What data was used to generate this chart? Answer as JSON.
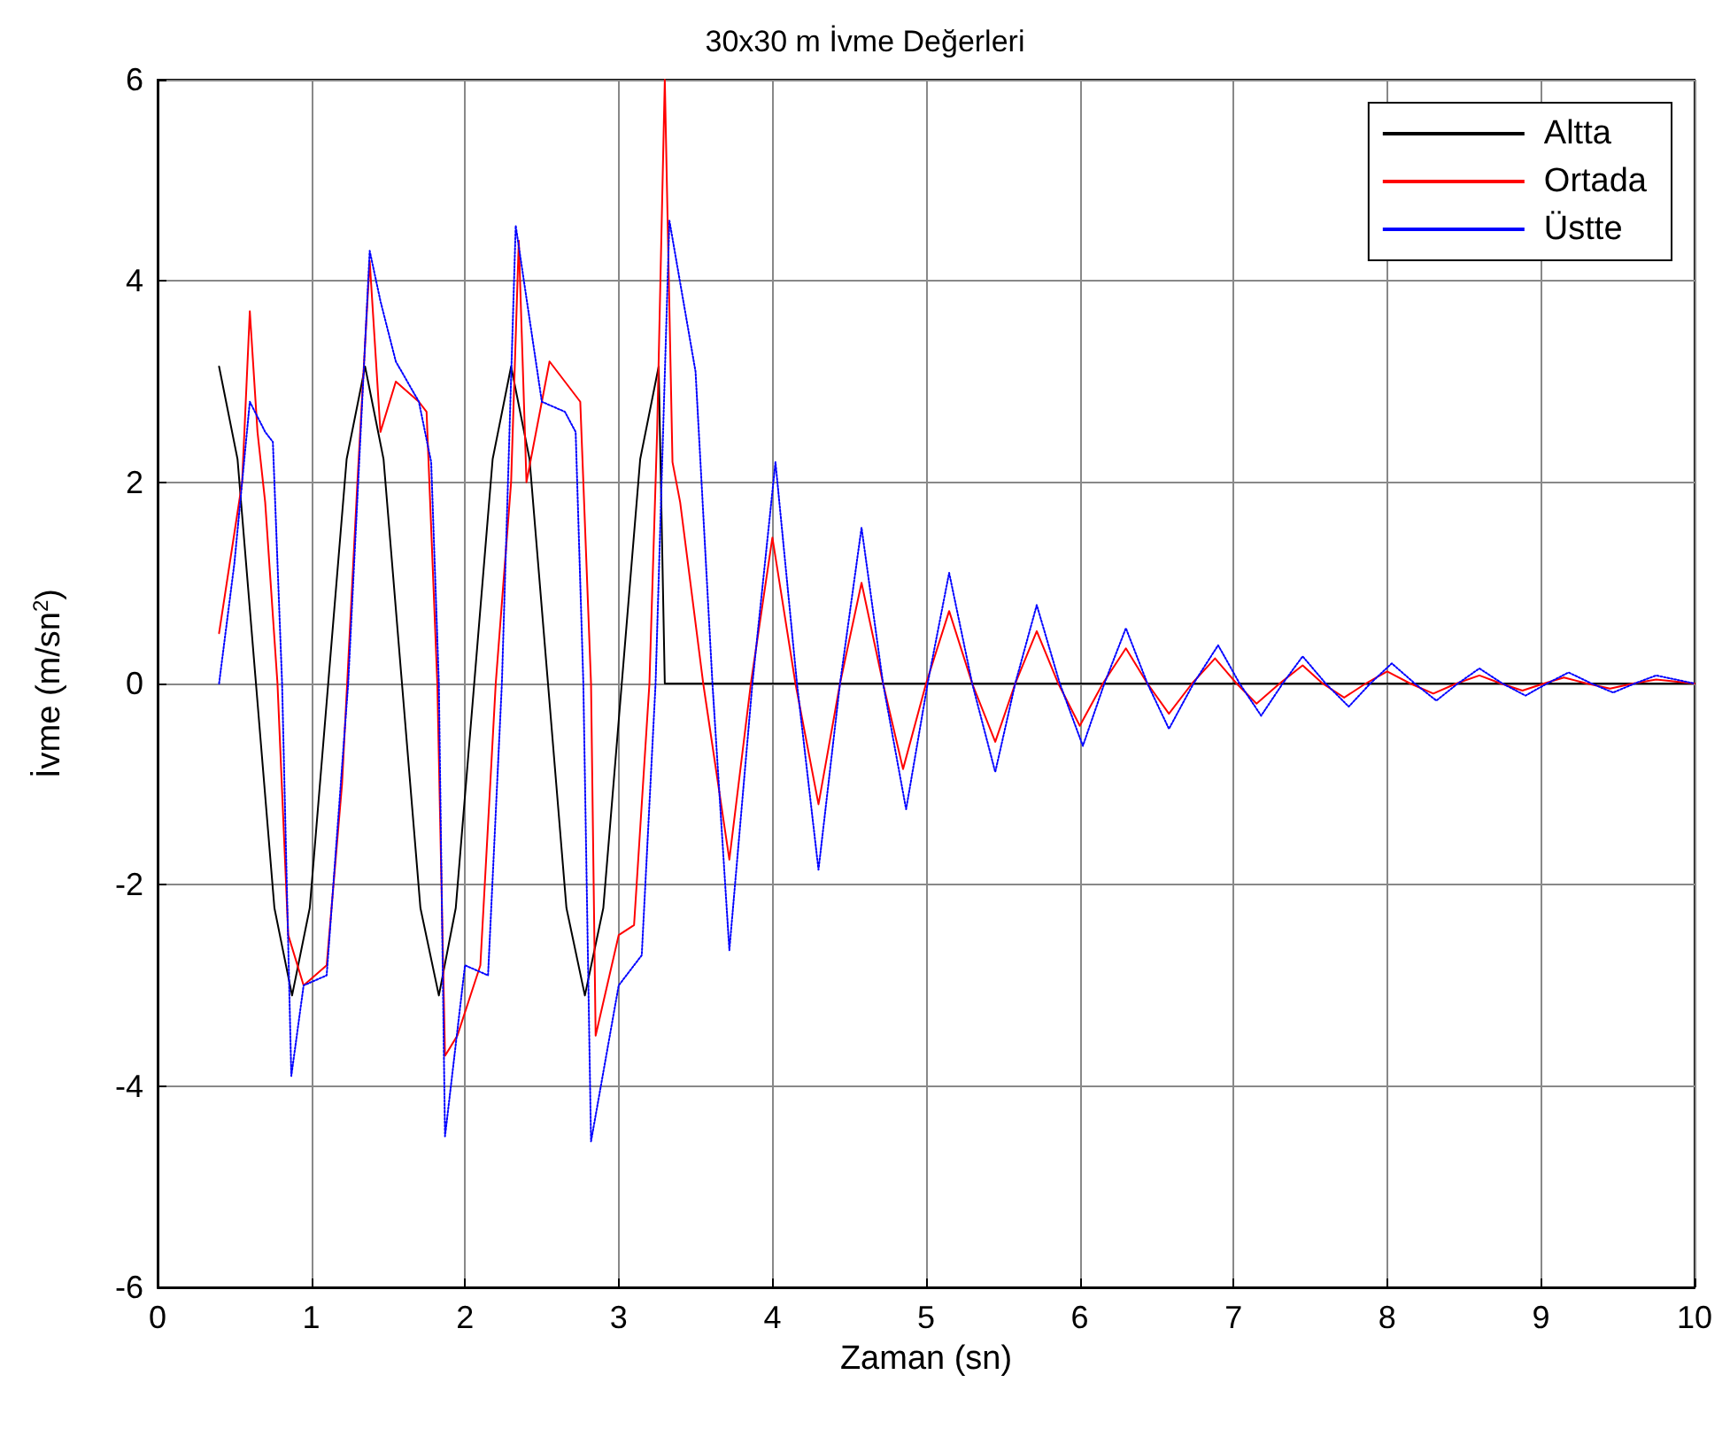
{
  "chart_data": {
    "type": "line",
    "title": "30x30 m İvme Değerleri",
    "xlabel": "Zaman (sn)",
    "ylabel": "İvme (m/sn$^{2}$)",
    "xlim": [
      0,
      10
    ],
    "ylim": [
      -6,
      6
    ],
    "xticks": [
      0,
      1,
      2,
      3,
      4,
      5,
      6,
      7,
      8,
      9,
      10
    ],
    "yticks": [
      -6,
      -4,
      -2,
      0,
      2,
      4,
      6
    ],
    "grid": true,
    "legend": "top right",
    "marker": "none",
    "line_style": "solid",
    "series": [
      {
        "name": "Altta",
        "color": "#000000",
        "x": [
          0.4,
          0.52,
          0.64,
          0.76,
          0.875,
          0.99,
          1.11,
          1.23,
          1.35,
          1.47,
          1.59,
          1.71,
          1.83,
          1.94,
          2.06,
          2.18,
          2.3,
          2.42,
          2.54,
          2.66,
          2.78,
          2.9,
          3.02,
          3.14,
          3.26,
          3.3,
          10
        ],
        "values": [
          3.15,
          2.23,
          0,
          -2.23,
          -3.1,
          -2.23,
          0,
          2.23,
          3.15,
          2.23,
          0,
          -2.23,
          -3.1,
          -2.23,
          0,
          2.23,
          3.15,
          2.23,
          0,
          -2.23,
          -3.1,
          -2.23,
          0,
          2.23,
          3.15,
          0,
          0
        ]
      },
      {
        "name": "Ortada",
        "color": "#ff0000",
        "x": [
          0.4,
          0.5,
          0.55,
          0.6,
          0.65,
          0.7,
          0.78,
          0.85,
          0.95,
          1.1,
          1.2,
          1.3,
          1.38,
          1.45,
          1.55,
          1.7,
          1.75,
          1.82,
          1.87,
          1.95,
          2.1,
          2.2,
          2.3,
          2.35,
          2.4,
          2.55,
          2.65,
          2.75,
          2.82,
          2.85,
          3.0,
          3.1,
          3.2,
          3.25,
          3.3,
          3.35,
          3.4,
          3.55,
          3.72,
          3.86,
          4.0,
          4.15,
          4.3,
          4.44,
          4.58,
          4.72,
          4.85,
          5.0,
          5.15,
          5.3,
          5.45,
          5.58,
          5.72,
          5.86,
          6.0,
          6.15,
          6.3,
          6.44,
          6.58,
          6.73,
          6.88,
          7.02,
          7.15,
          7.3,
          7.45,
          7.58,
          7.72,
          7.86,
          8.0,
          8.15,
          8.3,
          8.45,
          8.6,
          8.74,
          8.88,
          9.02,
          9.15,
          9.3,
          9.45,
          9.6,
          9.75,
          10
        ],
        "values": [
          0.5,
          1.5,
          2,
          3.7,
          2.5,
          1.8,
          0,
          -2.5,
          -3,
          -2.8,
          -1,
          2,
          4.2,
          2.5,
          3,
          2.8,
          2.7,
          0,
          -3.7,
          -3.5,
          -2.8,
          0,
          2,
          4.4,
          2,
          3.2,
          3,
          2.8,
          0,
          -3.5,
          -2.5,
          -2.4,
          0,
          2.5,
          6,
          2.2,
          1.8,
          0,
          -1.75,
          0,
          1.45,
          0,
          -1.2,
          0,
          1,
          0,
          -0.85,
          0,
          0.72,
          0,
          -0.58,
          0,
          0.52,
          0,
          -0.42,
          0,
          0.35,
          0,
          -0.3,
          0,
          0.25,
          0,
          -0.2,
          0,
          0.18,
          0,
          -0.14,
          0,
          0.12,
          0,
          -0.1,
          0,
          0.08,
          0,
          -0.07,
          0,
          0.06,
          0,
          -0.05,
          0,
          0.04,
          0
        ]
      },
      {
        "name": "Üstte",
        "color": "#0000ff",
        "line_style": "dotted",
        "x": [
          0.4,
          0.5,
          0.6,
          0.7,
          0.75,
          0.81,
          0.87,
          0.95,
          1.1,
          1.24,
          1.38,
          1.45,
          1.55,
          1.7,
          1.78,
          1.83,
          1.87,
          2.0,
          2.15,
          2.24,
          2.33,
          2.5,
          2.65,
          2.72,
          2.77,
          2.82,
          3.0,
          3.15,
          3.24,
          3.33,
          3.5,
          3.61,
          3.72,
          3.87,
          4.02,
          4.16,
          4.3,
          4.44,
          4.58,
          4.72,
          4.87,
          5.01,
          5.15,
          5.3,
          5.45,
          5.58,
          5.72,
          5.87,
          6.02,
          6.16,
          6.3,
          6.44,
          6.58,
          6.74,
          6.9,
          7.04,
          7.18,
          7.32,
          7.45,
          7.6,
          7.75,
          7.89,
          8.03,
          8.18,
          8.32,
          8.46,
          8.6,
          8.75,
          8.9,
          9.04,
          9.18,
          9.33,
          9.47,
          9.61,
          9.75,
          10
        ],
        "values": [
          0,
          1.2,
          2.8,
          2.5,
          2.4,
          0,
          -3.9,
          -3,
          -2.9,
          0,
          4.3,
          3.8,
          3.2,
          2.8,
          2.2,
          0,
          -4.5,
          -2.8,
          -2.9,
          0,
          4.55,
          2.8,
          2.7,
          2.5,
          0,
          -4.55,
          -3,
          -2.7,
          0,
          4.6,
          3.1,
          0,
          -2.65,
          0,
          2.2,
          0,
          -1.85,
          0,
          1.55,
          0,
          -1.25,
          0,
          1.1,
          0,
          -0.88,
          0,
          0.78,
          0,
          -0.62,
          0,
          0.55,
          0,
          -0.45,
          0,
          0.38,
          0,
          -0.32,
          0,
          0.27,
          0,
          -0.23,
          0,
          0.2,
          0,
          -0.17,
          0,
          0.15,
          0,
          -0.12,
          0,
          0.11,
          0,
          -0.09,
          0,
          0.08,
          0
        ]
      }
    ]
  }
}
